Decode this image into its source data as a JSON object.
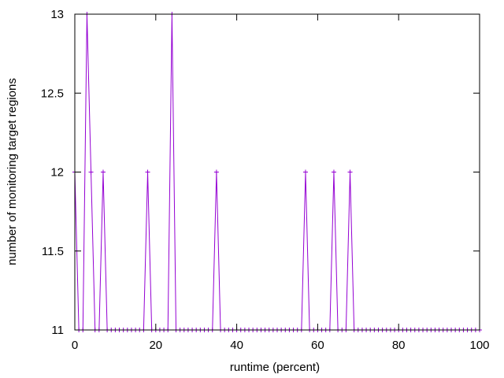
{
  "chart_data": {
    "type": "line",
    "title": "",
    "xlabel": "runtime (percent)",
    "ylabel": "number of monitoring target regions",
    "xlim": [
      0,
      100
    ],
    "ylim": [
      11,
      13
    ],
    "xticks": [
      "0",
      "20",
      "40",
      "60",
      "80",
      "100"
    ],
    "yticks": [
      "11",
      "11.5",
      "12",
      "12.5",
      "13"
    ],
    "grid": false,
    "legend": "none",
    "series": [
      {
        "color": "#9400d3",
        "marker": "plus",
        "x": [
          0,
          1,
          2,
          3,
          4,
          5,
          6,
          7,
          8,
          9,
          10,
          11,
          12,
          13,
          14,
          15,
          16,
          17,
          18,
          19,
          20,
          21,
          22,
          23,
          24,
          25,
          26,
          27,
          28,
          29,
          30,
          31,
          32,
          33,
          34,
          35,
          36,
          37,
          38,
          39,
          40,
          41,
          42,
          43,
          44,
          45,
          46,
          47,
          48,
          49,
          50,
          51,
          52,
          53,
          54,
          55,
          56,
          57,
          58,
          59,
          60,
          61,
          62,
          63,
          64,
          65,
          66,
          67,
          68,
          69,
          70,
          71,
          72,
          73,
          74,
          75,
          76,
          77,
          78,
          79,
          80,
          81,
          82,
          83,
          84,
          85,
          86,
          87,
          88,
          89,
          90,
          91,
          92,
          93,
          94,
          95,
          96,
          97,
          98,
          99,
          100
        ],
        "y": [
          12,
          11,
          11,
          13,
          12,
          11,
          11,
          12,
          11,
          11,
          11,
          11,
          11,
          11,
          11,
          11,
          11,
          11,
          12,
          11,
          11,
          11,
          11,
          11,
          13,
          11,
          11,
          11,
          11,
          11,
          11,
          11,
          11,
          11,
          11,
          12,
          11,
          11,
          11,
          11,
          11,
          11,
          11,
          11,
          11,
          11,
          11,
          11,
          11,
          11,
          11,
          11,
          11,
          11,
          11,
          11,
          11,
          12,
          11,
          11,
          11,
          11,
          11,
          11,
          12,
          11,
          11,
          11,
          12,
          11,
          11,
          11,
          11,
          11,
          11,
          11,
          11,
          11,
          11,
          11,
          11,
          11,
          11,
          11,
          11,
          11,
          11,
          11,
          11,
          11,
          11,
          11,
          11,
          11,
          11,
          11,
          11,
          11,
          11,
          11,
          11
        ]
      }
    ]
  }
}
